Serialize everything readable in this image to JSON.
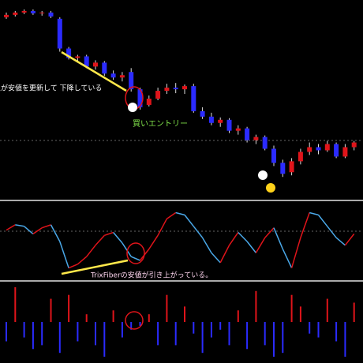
{
  "chart_data": [
    {
      "type": "candlestick",
      "up_color": "#e0141a",
      "down_color": "#2b2bff",
      "ylim": [
        0,
        250
      ],
      "annotations": [
        "足が安値を更新して 下降している",
        "買いエントリー"
      ],
      "open": [
        230,
        233,
        236,
        238,
        235,
        236,
        228,
        190,
        178,
        180,
        167,
        172,
        158,
        153,
        160,
        138,
        118,
        126,
        136,
        140,
        138,
        142,
        110,
        103,
        95,
        99,
        85,
        88,
        73,
        77,
        62,
        44,
        32,
        46,
        58,
        64,
        60,
        68,
        52,
        64
      ],
      "high": [
        236,
        238,
        240,
        240,
        238,
        238,
        230,
        192,
        182,
        182,
        175,
        174,
        162,
        160,
        165,
        140,
        130,
        140,
        145,
        146,
        144,
        145,
        115,
        108,
        102,
        101,
        92,
        90,
        80,
        79,
        66,
        48,
        50,
        62,
        70,
        68,
        72,
        70,
        68,
        72
      ],
      "low": [
        228,
        231,
        234,
        233,
        232,
        229,
        186,
        176,
        172,
        165,
        163,
        155,
        150,
        148,
        135,
        112,
        116,
        124,
        132,
        133,
        132,
        108,
        100,
        92,
        90,
        82,
        80,
        70,
        68,
        60,
        40,
        26,
        28,
        42,
        54,
        55,
        58,
        50,
        50,
        60
      ],
      "close": [
        233,
        236,
        238,
        235,
        236,
        231,
        190,
        178,
        180,
        167,
        172,
        158,
        153,
        156,
        138,
        115,
        126,
        136,
        140,
        138,
        142,
        110,
        103,
        95,
        99,
        85,
        88,
        73,
        77,
        62,
        44,
        30,
        46,
        58,
        64,
        60,
        68,
        52,
        64,
        70
      ]
    },
    {
      "type": "line",
      "up_color": "#e0141a",
      "down_color": "#4aa8e8",
      "ylim": [
        0,
        100
      ],
      "annotations": [
        "TrixFiberの安値が引き上がっている。"
      ],
      "values": [
        65,
        72,
        70,
        60,
        68,
        72,
        50,
        15,
        20,
        30,
        45,
        58,
        62,
        48,
        30,
        25,
        40,
        58,
        80,
        88,
        85,
        70,
        55,
        35,
        22,
        45,
        62,
        50,
        35,
        55,
        68,
        40,
        15,
        55,
        88,
        85,
        70,
        55,
        45,
        60
      ]
    },
    {
      "type": "bar",
      "up_color": "#e0141a",
      "down_color": "#2b2bff",
      "ylim": [
        -50,
        50
      ],
      "values": [
        -25,
        45,
        -20,
        -35,
        -30,
        30,
        -40,
        35,
        -25,
        10,
        -30,
        -45,
        15,
        -20,
        -10,
        -5,
        10,
        -30,
        35,
        -30,
        20,
        -15,
        -40,
        -20,
        -10,
        -30,
        15,
        -35,
        40,
        -30,
        -45,
        -40,
        35,
        20,
        -15,
        -20,
        30,
        -25,
        -45,
        25
      ]
    }
  ]
}
